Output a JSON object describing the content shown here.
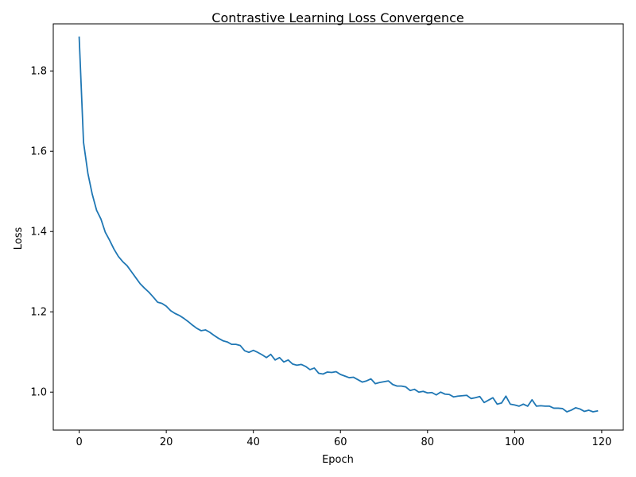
{
  "chart_data": {
    "type": "line",
    "title": "Contrastive Learning Loss Convergence",
    "xlabel": "Epoch",
    "ylabel": "Loss",
    "xlim": [
      -5.95,
      124.95
    ],
    "ylim": [
      0.9054,
      1.9173
    ],
    "xticks": [
      0,
      20,
      40,
      60,
      80,
      100,
      120
    ],
    "yticks": [
      1.0,
      1.2,
      1.4,
      1.6,
      1.8
    ],
    "xtick_labels": [
      "0",
      "20",
      "40",
      "60",
      "80",
      "100",
      "120"
    ],
    "ytick_labels": [
      "1.0",
      "1.2",
      "1.4",
      "1.6",
      "1.8"
    ],
    "grid": false,
    "legend": false,
    "series": [
      {
        "color": "#1f77b4",
        "x": [
          0,
          1,
          2,
          3,
          4,
          5,
          6,
          7,
          8,
          9,
          10,
          11,
          12,
          13,
          14,
          15,
          16,
          17,
          18,
          19,
          20,
          21,
          22,
          23,
          24,
          25,
          26,
          27,
          28,
          29,
          30,
          31,
          32,
          33,
          34,
          35,
          36,
          37,
          38,
          39,
          40,
          41,
          42,
          43,
          44,
          45,
          46,
          47,
          48,
          49,
          50,
          51,
          52,
          53,
          54,
          55,
          56,
          57,
          58,
          59,
          60,
          61,
          62,
          63,
          64,
          65,
          66,
          67,
          68,
          69,
          70,
          71,
          72,
          73,
          74,
          75,
          76,
          77,
          78,
          79,
          80,
          81,
          82,
          83,
          84,
          85,
          86,
          87,
          88,
          89,
          90,
          91,
          92,
          93,
          94,
          95,
          96,
          97,
          98,
          99,
          100,
          101,
          102,
          103,
          104,
          105,
          106,
          107,
          108,
          109,
          110,
          111,
          112,
          113,
          114,
          115,
          116,
          117,
          118,
          119
        ],
        "y": [
          1.884,
          1.622,
          1.545,
          1.493,
          1.453,
          1.431,
          1.398,
          1.378,
          1.356,
          1.338,
          1.325,
          1.315,
          1.3,
          1.285,
          1.27,
          1.259,
          1.249,
          1.237,
          1.224,
          1.221,
          1.214,
          1.203,
          1.196,
          1.191,
          1.184,
          1.176,
          1.167,
          1.159,
          1.153,
          1.155,
          1.149,
          1.141,
          1.134,
          1.128,
          1.125,
          1.119,
          1.119,
          1.116,
          1.103,
          1.099,
          1.104,
          1.099,
          1.093,
          1.086,
          1.094,
          1.08,
          1.086,
          1.075,
          1.08,
          1.07,
          1.067,
          1.069,
          1.064,
          1.056,
          1.06,
          1.047,
          1.045,
          1.05,
          1.049,
          1.051,
          1.044,
          1.04,
          1.036,
          1.037,
          1.031,
          1.025,
          1.028,
          1.033,
          1.021,
          1.024,
          1.026,
          1.028,
          1.019,
          1.015,
          1.015,
          1.013,
          1.004,
          1.007,
          1.0,
          1.002,
          0.998,
          0.999,
          0.993,
          1.0,
          0.995,
          0.994,
          0.988,
          0.99,
          0.991,
          0.992,
          0.984,
          0.986,
          0.989,
          0.974,
          0.98,
          0.986,
          0.97,
          0.973,
          0.99,
          0.97,
          0.968,
          0.965,
          0.97,
          0.965,
          0.981,
          0.965,
          0.966,
          0.965,
          0.965,
          0.96,
          0.96,
          0.959,
          0.951,
          0.955,
          0.961,
          0.958,
          0.952,
          0.955,
          0.951,
          0.953
        ]
      }
    ]
  }
}
